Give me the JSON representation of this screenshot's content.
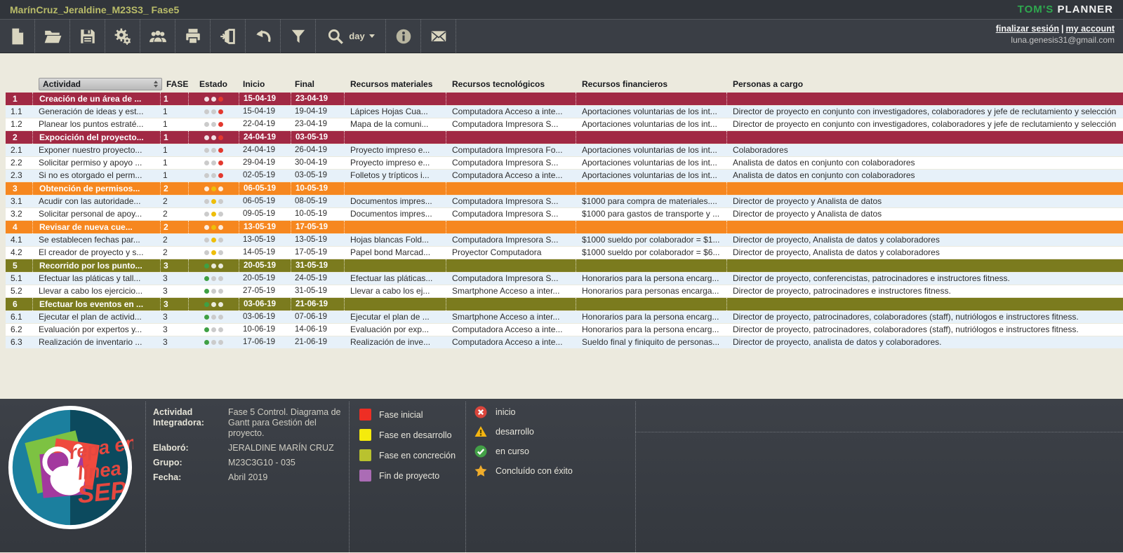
{
  "header": {
    "title": "MarínCruz_Jeraldine_M23S3_ Fase5",
    "brand_green": "TOM'S",
    "brand_white": "PLANNER",
    "logout_label": "finalizar sesión",
    "link_separator": "|",
    "account_label": "my account",
    "email": "luna.genesis31@gmail.com",
    "zoom_label": "day"
  },
  "table": {
    "columns": [
      "Actividad",
      "FASE",
      "Estado",
      "Inicio",
      "Final",
      "Recursos materiales",
      "Recursos tecnológicos",
      "Recursos financieros",
      "Personas a cargo"
    ],
    "rows": [
      {
        "id": "1",
        "type": "group",
        "band": "maroon",
        "estado": "red",
        "label": "Creación de un área de ...",
        "fase": "1",
        "inicio": "15-04-19",
        "final": "23-04-19",
        "materiales": "",
        "tecnologicos": "",
        "financieros": "",
        "personas": ""
      },
      {
        "id": "1.1",
        "type": "sub",
        "shade": "blue",
        "estado": "red",
        "label": "Generación de ideas y est...",
        "fase": "1",
        "inicio": "15-04-19",
        "final": "19-04-19",
        "materiales": "Lápices  Hojas Cua...",
        "tecnologicos": "Computadora Acceso a inte...",
        "financieros": "Aportaciones voluntarias de los int...",
        "personas": "Director de proyecto en conjunto con investigadores,  colaboradores y jefe de reclutamiento y selección"
      },
      {
        "id": "1.2",
        "type": "sub",
        "shade": "white",
        "estado": "red",
        "label": "Planear los puntos estraté...",
        "fase": "1",
        "inicio": "22-04-19",
        "final": "23-04-19",
        "materiales": "Mapa de la comuni...",
        "tecnologicos": "Computadora Impresora S...",
        "financieros": "Aportaciones voluntarias de los int...",
        "personas": "Director de proyecto en conjunto con investigadores,  colaboradores y jefe de reclutamiento y selección"
      },
      {
        "id": "2",
        "type": "group",
        "band": "maroon",
        "estado": "red",
        "label": "Expocición del proyecto...",
        "fase": "1",
        "inicio": "24-04-19",
        "final": "03-05-19",
        "materiales": "",
        "tecnologicos": "",
        "financieros": "",
        "personas": ""
      },
      {
        "id": "2.1",
        "type": "sub",
        "shade": "blue",
        "estado": "red",
        "label": "Exponer nuestro proyecto...",
        "fase": "1",
        "inicio": "24-04-19",
        "final": "26-04-19",
        "materiales": "Proyecto impreso e...",
        "tecnologicos": "Computadora Impresora Fo...",
        "financieros": "Aportaciones voluntarias de los int...",
        "personas": "Colaboradores"
      },
      {
        "id": "2.2",
        "type": "sub",
        "shade": "white",
        "estado": "red",
        "label": "Solicitar permiso y apoyo ...",
        "fase": "1",
        "inicio": "29-04-19",
        "final": "30-04-19",
        "materiales": "Proyecto impreso e...",
        "tecnologicos": "Computadora Impresora S...",
        "financieros": "Aportaciones voluntarias de los int...",
        "personas": "Analista de datos en conjunto con colaboradores"
      },
      {
        "id": "2.3",
        "type": "sub",
        "shade": "blue",
        "estado": "red",
        "label": "Si no es otorgado el perm...",
        "fase": "1",
        "inicio": "02-05-19",
        "final": "03-05-19",
        "materiales": "Folletos y trípticos i...",
        "tecnologicos": "Computadora Acceso a inte...",
        "financieros": "Aportaciones voluntarias de los int...",
        "personas": "Analista de datos en conjunto con colaboradores"
      },
      {
        "id": "3",
        "type": "group",
        "band": "orange",
        "estado": "yellow",
        "label": "Obtención de permisos...",
        "fase": "2",
        "inicio": "06-05-19",
        "final": "10-05-19",
        "materiales": "",
        "tecnologicos": "",
        "financieros": "",
        "personas": ""
      },
      {
        "id": "3.1",
        "type": "sub",
        "shade": "blue",
        "estado": "yellow",
        "label": "Acudir con las autoridade...",
        "fase": "2",
        "inicio": "06-05-19",
        "final": "08-05-19",
        "materiales": "Documentos impres...",
        "tecnologicos": "Computadora Impresora S...",
        "financieros": "$1000 para compra de materiales....",
        "personas": "Director de proyecto y Analista de datos"
      },
      {
        "id": "3.2",
        "type": "sub",
        "shade": "white",
        "estado": "yellow",
        "label": "Solicitar personal de apoy...",
        "fase": "2",
        "inicio": "09-05-19",
        "final": "10-05-19",
        "materiales": "Documentos impres...",
        "tecnologicos": "Computadora Impresora S...",
        "financieros": "$1000 para gastos de transporte y ...",
        "personas": "Director de proyecto y Analista de datos"
      },
      {
        "id": "4",
        "type": "group",
        "band": "orange",
        "estado": "yellow",
        "label": "Revisar de nueva cue...",
        "fase": "2",
        "inicio": "13-05-19",
        "final": "17-05-19",
        "materiales": "",
        "tecnologicos": "",
        "financieros": "",
        "personas": ""
      },
      {
        "id": "4.1",
        "type": "sub",
        "shade": "blue",
        "estado": "yellow",
        "label": "Se establecen fechas par...",
        "fase": "2",
        "inicio": "13-05-19",
        "final": "13-05-19",
        "materiales": "Hojas blancas Fold...",
        "tecnologicos": "Computadora Impresora S...",
        "financieros": "$1000 sueldo por colaborador = $1...",
        "personas": "Director de proyecto,  Analista de datos y colaboradores"
      },
      {
        "id": "4.2",
        "type": "sub",
        "shade": "white",
        "estado": "yellow",
        "label": "El creador de proyecto y s...",
        "fase": "2",
        "inicio": "14-05-19",
        "final": "17-05-19",
        "materiales": "Papel bond Marcad...",
        "tecnologicos": "Proyector Computadora",
        "financieros": "$1000 sueldo por colaborador = $6...",
        "personas": "Director de proyecto,  Analista de datos y colaboradores"
      },
      {
        "id": "5",
        "type": "group",
        "band": "olive",
        "estado": "green",
        "label": "Recorrido por los punto...",
        "fase": "3",
        "inicio": "20-05-19",
        "final": "31-05-19",
        "materiales": "",
        "tecnologicos": "",
        "financieros": "",
        "personas": ""
      },
      {
        "id": "5.1",
        "type": "sub",
        "shade": "blue",
        "estado": "green",
        "label": "Efectuar las pláticas y tall...",
        "fase": "3",
        "inicio": "20-05-19",
        "final": "24-05-19",
        "materiales": "Efectuar las pláticas...",
        "tecnologicos": "Computadora Impresora S...",
        "financieros": "Honorarios para la persona encarg...",
        "personas": "Director de proyecto, conferencistas, patrocinadores  e instructores fitness."
      },
      {
        "id": "5.2",
        "type": "sub",
        "shade": "white",
        "estado": "green",
        "label": "Llevar a cabo los ejercicio...",
        "fase": "3",
        "inicio": "27-05-19",
        "final": "31-05-19",
        "materiales": "Llevar a cabo los ej...",
        "tecnologicos": "Smartphone Acceso a inter...",
        "financieros": "Honorarios para personas encarga...",
        "personas": "Director de proyecto, patrocinadores e instructores fitness."
      },
      {
        "id": "6",
        "type": "group",
        "band": "olive",
        "estado": "green",
        "label": "Efectuar los eventos en ...",
        "fase": "3",
        "inicio": "03-06-19",
        "final": "21-06-19",
        "materiales": "",
        "tecnologicos": "",
        "financieros": "",
        "personas": ""
      },
      {
        "id": "6.1",
        "type": "sub",
        "shade": "blue",
        "estado": "green",
        "label": "Ejecutar el plan de activid...",
        "fase": "3",
        "inicio": "03-06-19",
        "final": "07-06-19",
        "materiales": "Ejecutar el plan de ...",
        "tecnologicos": "Smartphone Acceso a inter...",
        "financieros": "Honorarios para la persona encarg...",
        "personas": "Director de proyecto, patrocinadores, colaboradores (staff), nutriólogos e instructores fitness."
      },
      {
        "id": "6.2",
        "type": "sub",
        "shade": "white",
        "estado": "green",
        "label": "Evaluación por expertos y...",
        "fase": "3",
        "inicio": "10-06-19",
        "final": "14-06-19",
        "materiales": "Evaluación por exp...",
        "tecnologicos": "Computadora Acceso a inte...",
        "financieros": "Honorarios para la persona encarg...",
        "personas": "Director de proyecto, patrocinadores, colaboradores (staff), nutriólogos e instructores fitness."
      },
      {
        "id": "6.3",
        "type": "sub",
        "shade": "blue",
        "estado": "green",
        "label": "Realización de inventario ...",
        "fase": "3",
        "inicio": "17-06-19",
        "final": "21-06-19",
        "materiales": "Realización de inve...",
        "tecnologicos": "Computadora Acceso a inte...",
        "financieros": "Sueldo final y finiquito de personas...",
        "personas": "Director de proyecto, analista de datos y colaboradores."
      }
    ]
  },
  "footer": {
    "info": [
      {
        "label": "Actividad Integradora:",
        "value": "Fase 5 Control. Diagrama de Gantt para Gestión del proyecto."
      },
      {
        "label": "Elaboró:",
        "value": "JERALDINE MARÍN CRUZ"
      },
      {
        "label": "Grupo:",
        "value": "M23C3G10 - 035"
      },
      {
        "label": "Fecha:",
        "value": "Abril 2019"
      }
    ],
    "phase_legend": [
      {
        "label": "Fase inicial",
        "color": "#ee2e24"
      },
      {
        "label": "Fase en desarrollo",
        "color": "#f5eb0c"
      },
      {
        "label": "Fase en concreción",
        "color": "#b9c22f"
      },
      {
        "label": "Fin de proyecto",
        "color": "#ab6cb5"
      }
    ],
    "status_legend": [
      {
        "icon": "cross-circle-icon",
        "label": "inicio"
      },
      {
        "icon": "warning-triangle-icon",
        "label": "desarrollo"
      },
      {
        "icon": "check-circle-icon",
        "label": "en curso"
      },
      {
        "icon": "star-icon",
        "label": "Concluído con éxito"
      }
    ],
    "logo_text": {
      "line1": "repa en",
      "line2": "línea",
      "line3": "SEP"
    }
  },
  "colors": {
    "bands": {
      "maroon": "#a12944",
      "orange": "#f6871f",
      "olive": "#7b7b1e"
    },
    "shades": {
      "blue": "#e7f1f9",
      "white": "#ffffff"
    },
    "estado": {
      "red": "#e3382e",
      "yellow": "#eebe0a",
      "green": "#3fa044",
      "inactive": "#cbcbcb",
      "inactive_on_band": "rgba(255,255,255,0.85)"
    },
    "accent_green": "#2fa84f",
    "title_yellow": "#b9bc69"
  }
}
